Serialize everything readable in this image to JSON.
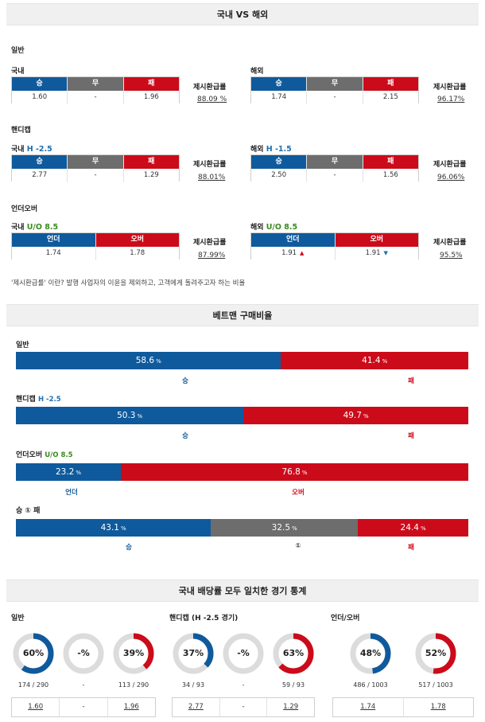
{
  "odds": {
    "header": "국내 VS 해외",
    "general": {
      "label": "일반",
      "domestic": {
        "label": "국내",
        "h_win": "승",
        "h_draw": "무",
        "h_lose": "패",
        "win": "1.60",
        "draw": "-",
        "lose": "1.96",
        "rate_label": "제시환급률",
        "rate": "88.09 %"
      },
      "foreign": {
        "label": "해외",
        "h_win": "승",
        "h_draw": "무",
        "h_lose": "패",
        "win": "1.74",
        "draw": "-",
        "lose": "2.15",
        "rate_label": "제시환급률",
        "rate": "96.17%"
      }
    },
    "handicap": {
      "label": "핸디캡",
      "domestic": {
        "label": "국내",
        "line": "H -2.5",
        "h_win": "승",
        "h_draw": "무",
        "h_lose": "패",
        "win": "2.77",
        "draw": "-",
        "lose": "1.29",
        "rate_label": "제시환급률",
        "rate": "88.01%"
      },
      "foreign": {
        "label": "해외",
        "line": "H -1.5",
        "h_win": "승",
        "h_draw": "무",
        "h_lose": "패",
        "win": "2.50",
        "draw": "-",
        "lose": "1.56",
        "rate_label": "제시환급률",
        "rate": "96.06%"
      }
    },
    "underover": {
      "label": "언더오버",
      "domestic": {
        "label": "국내",
        "line": "U/O 8.5",
        "h_under": "언더",
        "h_over": "오버",
        "under": "1.74",
        "over": "1.78",
        "rate_label": "제시환급률",
        "rate": "87.99%"
      },
      "foreign": {
        "label": "해외",
        "line": "U/O 8.5",
        "h_under": "언더",
        "h_over": "오버",
        "under": "1.91",
        "over": "1.91",
        "under_trend": "▲",
        "over_trend": "▼",
        "rate_label": "제시환급률",
        "rate": "95.5%"
      }
    },
    "note": "'제시환급률' 이란? 발행 사업자의 이윤을 제외하고, 고객에게 돌려주고자 하는 비율"
  },
  "bettors": {
    "header": "베트맨 구매비율",
    "pct_sign": "%",
    "general": {
      "label": "일반",
      "win": 58.6,
      "lose": 41.4,
      "win_label": "승",
      "lose_label": "패"
    },
    "handicap": {
      "label": "핸디캡",
      "line": "H -2.5",
      "win": 50.3,
      "lose": 49.7,
      "win_label": "승",
      "lose_label": "패"
    },
    "underover": {
      "label": "언더오버",
      "line": "U/O 8.5",
      "under": 23.2,
      "over": 76.8,
      "under_label": "언더",
      "over_label": "오버"
    },
    "wdl": {
      "label": "승 ① 패",
      "win": 43.1,
      "draw": 32.5,
      "lose": 24.4,
      "win_label": "승",
      "draw_label": "①",
      "lose_label": "패"
    }
  },
  "stats": {
    "header": "국내 배당률 모두 일치한 경기 통계",
    "general": {
      "label": "일반",
      "donuts": [
        {
          "text": "60%",
          "value": 60,
          "color": "#0f5a9c",
          "count": "174 / 290",
          "odds": "1.60"
        },
        {
          "text": "-%",
          "value": 0,
          "color": "#6d6d6d",
          "count": "-",
          "odds": "-"
        },
        {
          "text": "39%",
          "value": 39,
          "color": "#cc0b1a",
          "count": "113 / 290",
          "odds": "1.96"
        }
      ]
    },
    "handicap": {
      "label": "핸디캡 (H -2.5 경기)",
      "donuts": [
        {
          "text": "37%",
          "value": 37,
          "color": "#0f5a9c",
          "count": "34 / 93",
          "odds": "2.77"
        },
        {
          "text": "-%",
          "value": 0,
          "color": "#6d6d6d",
          "count": "-",
          "odds": "-"
        },
        {
          "text": "63%",
          "value": 63,
          "color": "#cc0b1a",
          "count": "59 / 93",
          "odds": "1.29"
        }
      ]
    },
    "underover": {
      "label": "언더/오버",
      "donuts": [
        {
          "text": "48%",
          "value": 48,
          "color": "#0f5a9c",
          "count": "486 / 1003",
          "odds": "1.74"
        },
        {
          "text": "52%",
          "value": 52,
          "color": "#cc0b1a",
          "count": "517 / 1003",
          "odds": "1.78"
        }
      ]
    }
  }
}
